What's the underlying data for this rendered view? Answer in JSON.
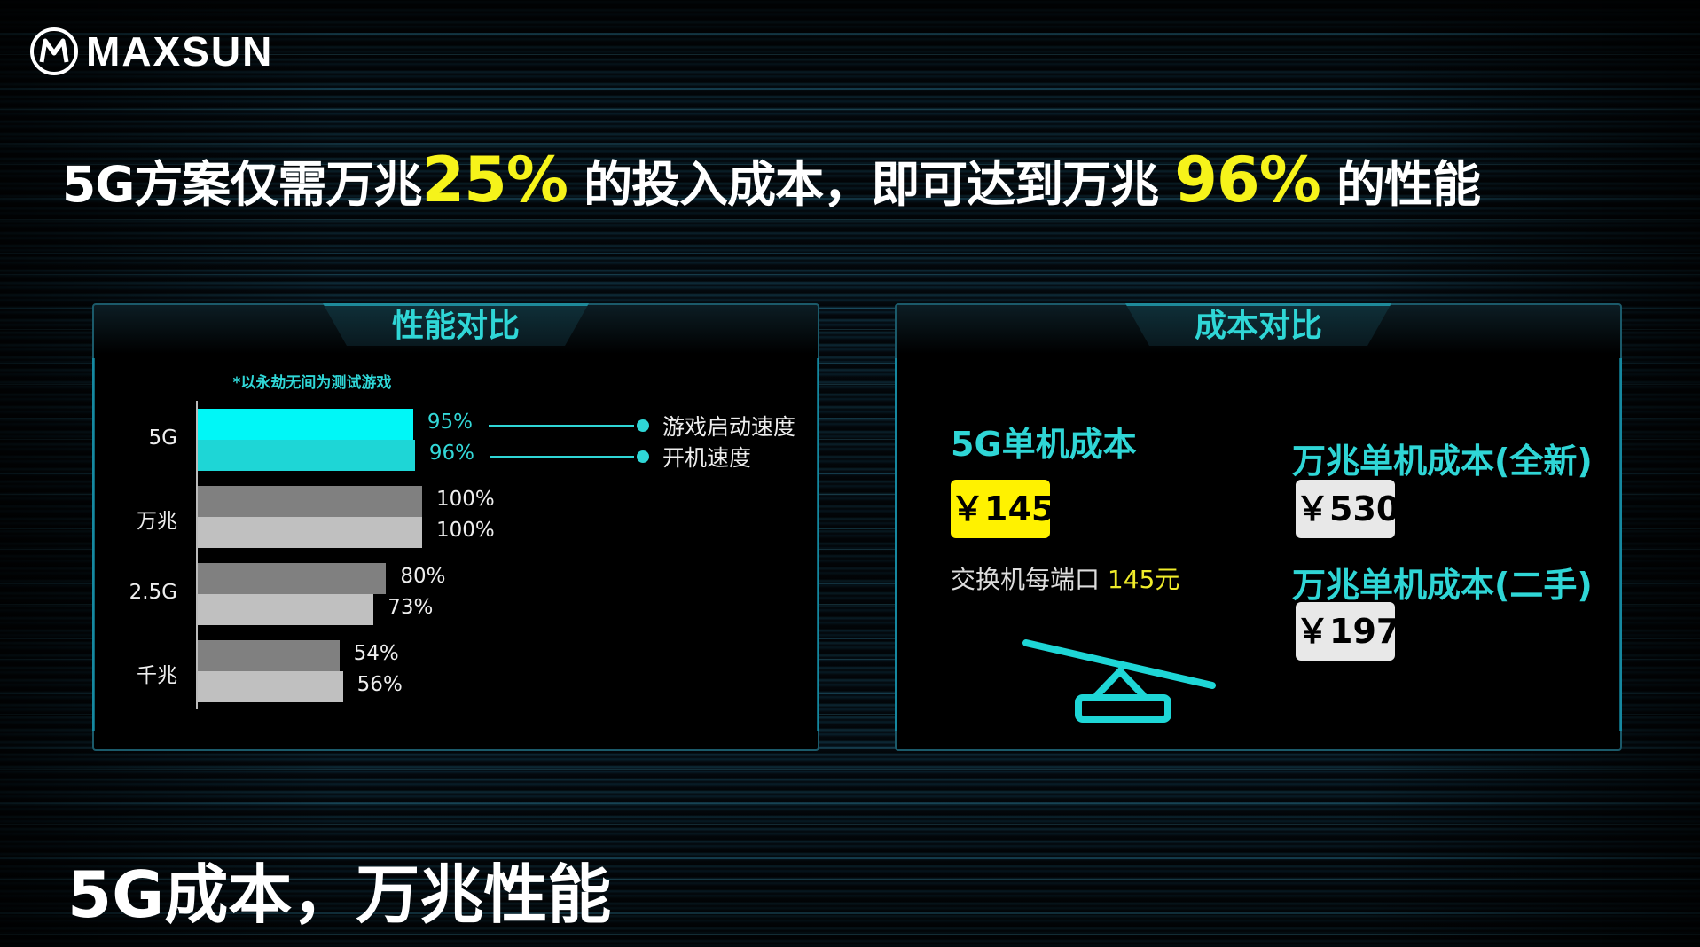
{
  "brand": {
    "logo_text": "MAXSUN"
  },
  "headline": {
    "part1": "5G方案仅需万兆",
    "hl1": "25%",
    "part2": " 的投入成本，即可达到万兆 ",
    "hl2": "96%",
    "part3": " 的性能"
  },
  "performance_panel": {
    "title": "性能对比",
    "note": "*以永劫无间为测试游戏"
  },
  "chart_data": {
    "type": "bar",
    "orientation": "horizontal",
    "categories": [
      "5G",
      "万兆",
      "2.5G",
      "千兆"
    ],
    "series": [
      {
        "name": "游戏启动速度",
        "values": [
          95,
          100,
          80,
          54
        ]
      },
      {
        "name": "开机速度",
        "values": [
          96,
          100,
          73,
          56
        ]
      }
    ],
    "value_labels": [
      [
        "95%",
        "100%",
        "80%",
        "54%"
      ],
      [
        "96%",
        "100%",
        "73%",
        "56%"
      ]
    ],
    "xlim": [
      0,
      100
    ],
    "unit": "%",
    "legend": "right",
    "grid": false,
    "colors": {
      "highlight_1": "#00f7f7",
      "highlight_2": "#1ed6d6",
      "series_1": "#808080",
      "series_2": "#c0c0c0"
    }
  },
  "cost_panel": {
    "title": "成本对比",
    "items": [
      {
        "label": "5G单机成本",
        "price": "￥145",
        "color": "#fff200"
      },
      {
        "label": "万兆单机成本(全新)",
        "price": "￥530",
        "color": "#e8e8e8"
      },
      {
        "label": "万兆单机成本(二手)",
        "price": "￥197",
        "color": "#e8e8e8"
      }
    ],
    "desc_text": "交换机每端口 ",
    "desc_value": "145元"
  },
  "bottom_title": "5G成本，万兆性能"
}
